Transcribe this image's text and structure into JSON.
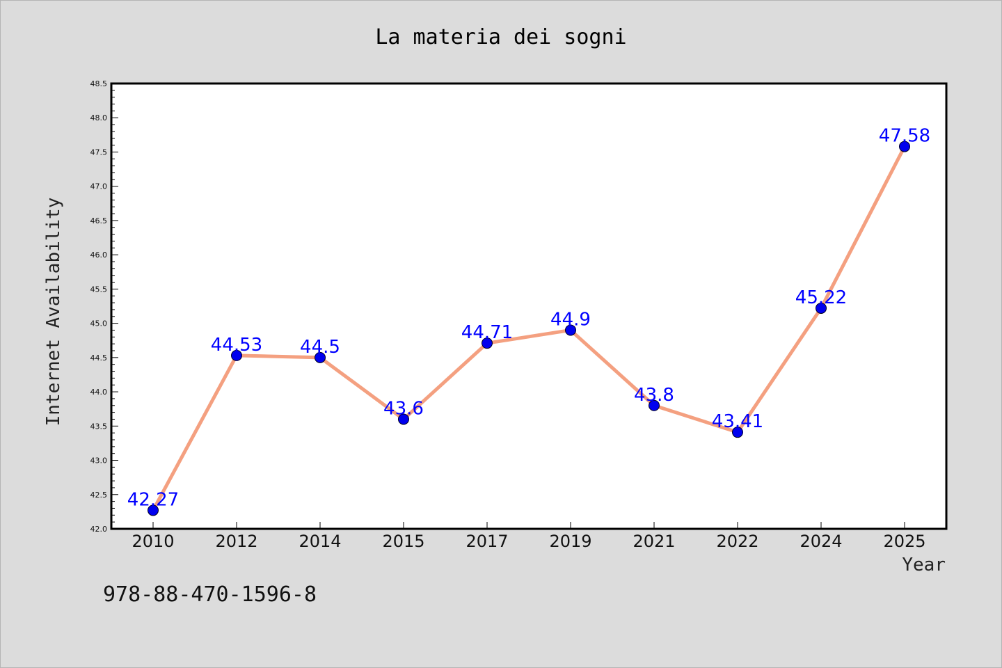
{
  "chart_data": {
    "type": "line",
    "title": "La materia dei sogni",
    "xlabel": "Year",
    "ylabel": "Internet Availability",
    "categories": [
      "2010",
      "2012",
      "2014",
      "2015",
      "2017",
      "2019",
      "2021",
      "2022",
      "2024",
      "2025"
    ],
    "series": [
      {
        "values": [
          42.27,
          44.53,
          44.5,
          43.6,
          44.71,
          44.9,
          43.8,
          43.41,
          45.22,
          47.58
        ],
        "data_labels": [
          "42.27",
          "44.53",
          "44.5",
          "43.6",
          "44.71",
          "44.9",
          "43.8",
          "43.41",
          "45.22",
          "47.58"
        ]
      }
    ],
    "ylim": [
      42.0,
      48.5
    ],
    "yticks": [
      "42.0",
      "42.5",
      "43.0",
      "43.5",
      "44.0",
      "44.5",
      "45.0",
      "45.5",
      "46.0",
      "46.5",
      "47.0",
      "47.5",
      "48.0",
      "48.5"
    ],
    "grid": false,
    "line_color": "#f4a080",
    "marker_color": "#0000ee",
    "label_color": "#0000ff",
    "background": "#dcdcdc",
    "plot_background": "#ffffff"
  },
  "footer": {
    "isbn": "978-88-470-1596-8"
  }
}
